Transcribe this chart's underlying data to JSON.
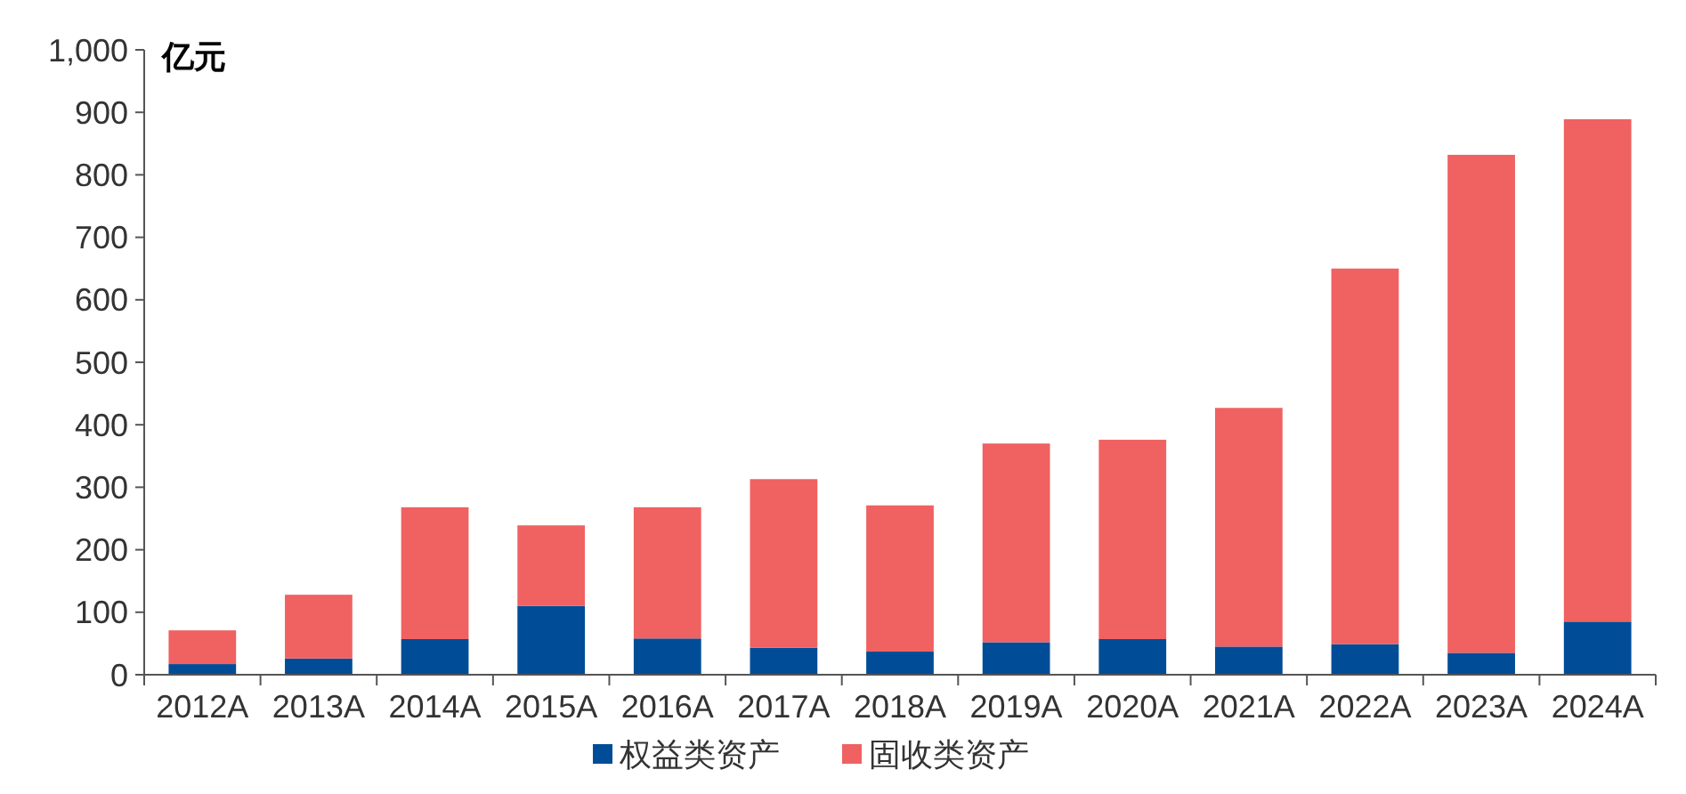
{
  "chart_data": {
    "type": "bar",
    "stacked": true,
    "ylabel": "亿元",
    "categories": [
      "2012A",
      "2013A",
      "2014A",
      "2015A",
      "2016A",
      "2017A",
      "2018A",
      "2019A",
      "2020A",
      "2021A",
      "2022A",
      "2023A",
      "2024A"
    ],
    "series": [
      {
        "name": "权益类资产",
        "color": "#004c97",
        "values": [
          17,
          26,
          57,
          110,
          58,
          43,
          37,
          52,
          57,
          45,
          49,
          35,
          85
        ]
      },
      {
        "name": "固收类资产",
        "color": "#f06161",
        "values": [
          54,
          102,
          211,
          129,
          210,
          270,
          234,
          318,
          319,
          382,
          601,
          797,
          804
        ]
      }
    ],
    "ylim": [
      0,
      1000
    ],
    "yticks": [
      0,
      100,
      200,
      300,
      400,
      500,
      600,
      700,
      800,
      900,
      {
        "value": 1000,
        "label": "1,000"
      }
    ],
    "grid": false,
    "legend": "bottom"
  }
}
